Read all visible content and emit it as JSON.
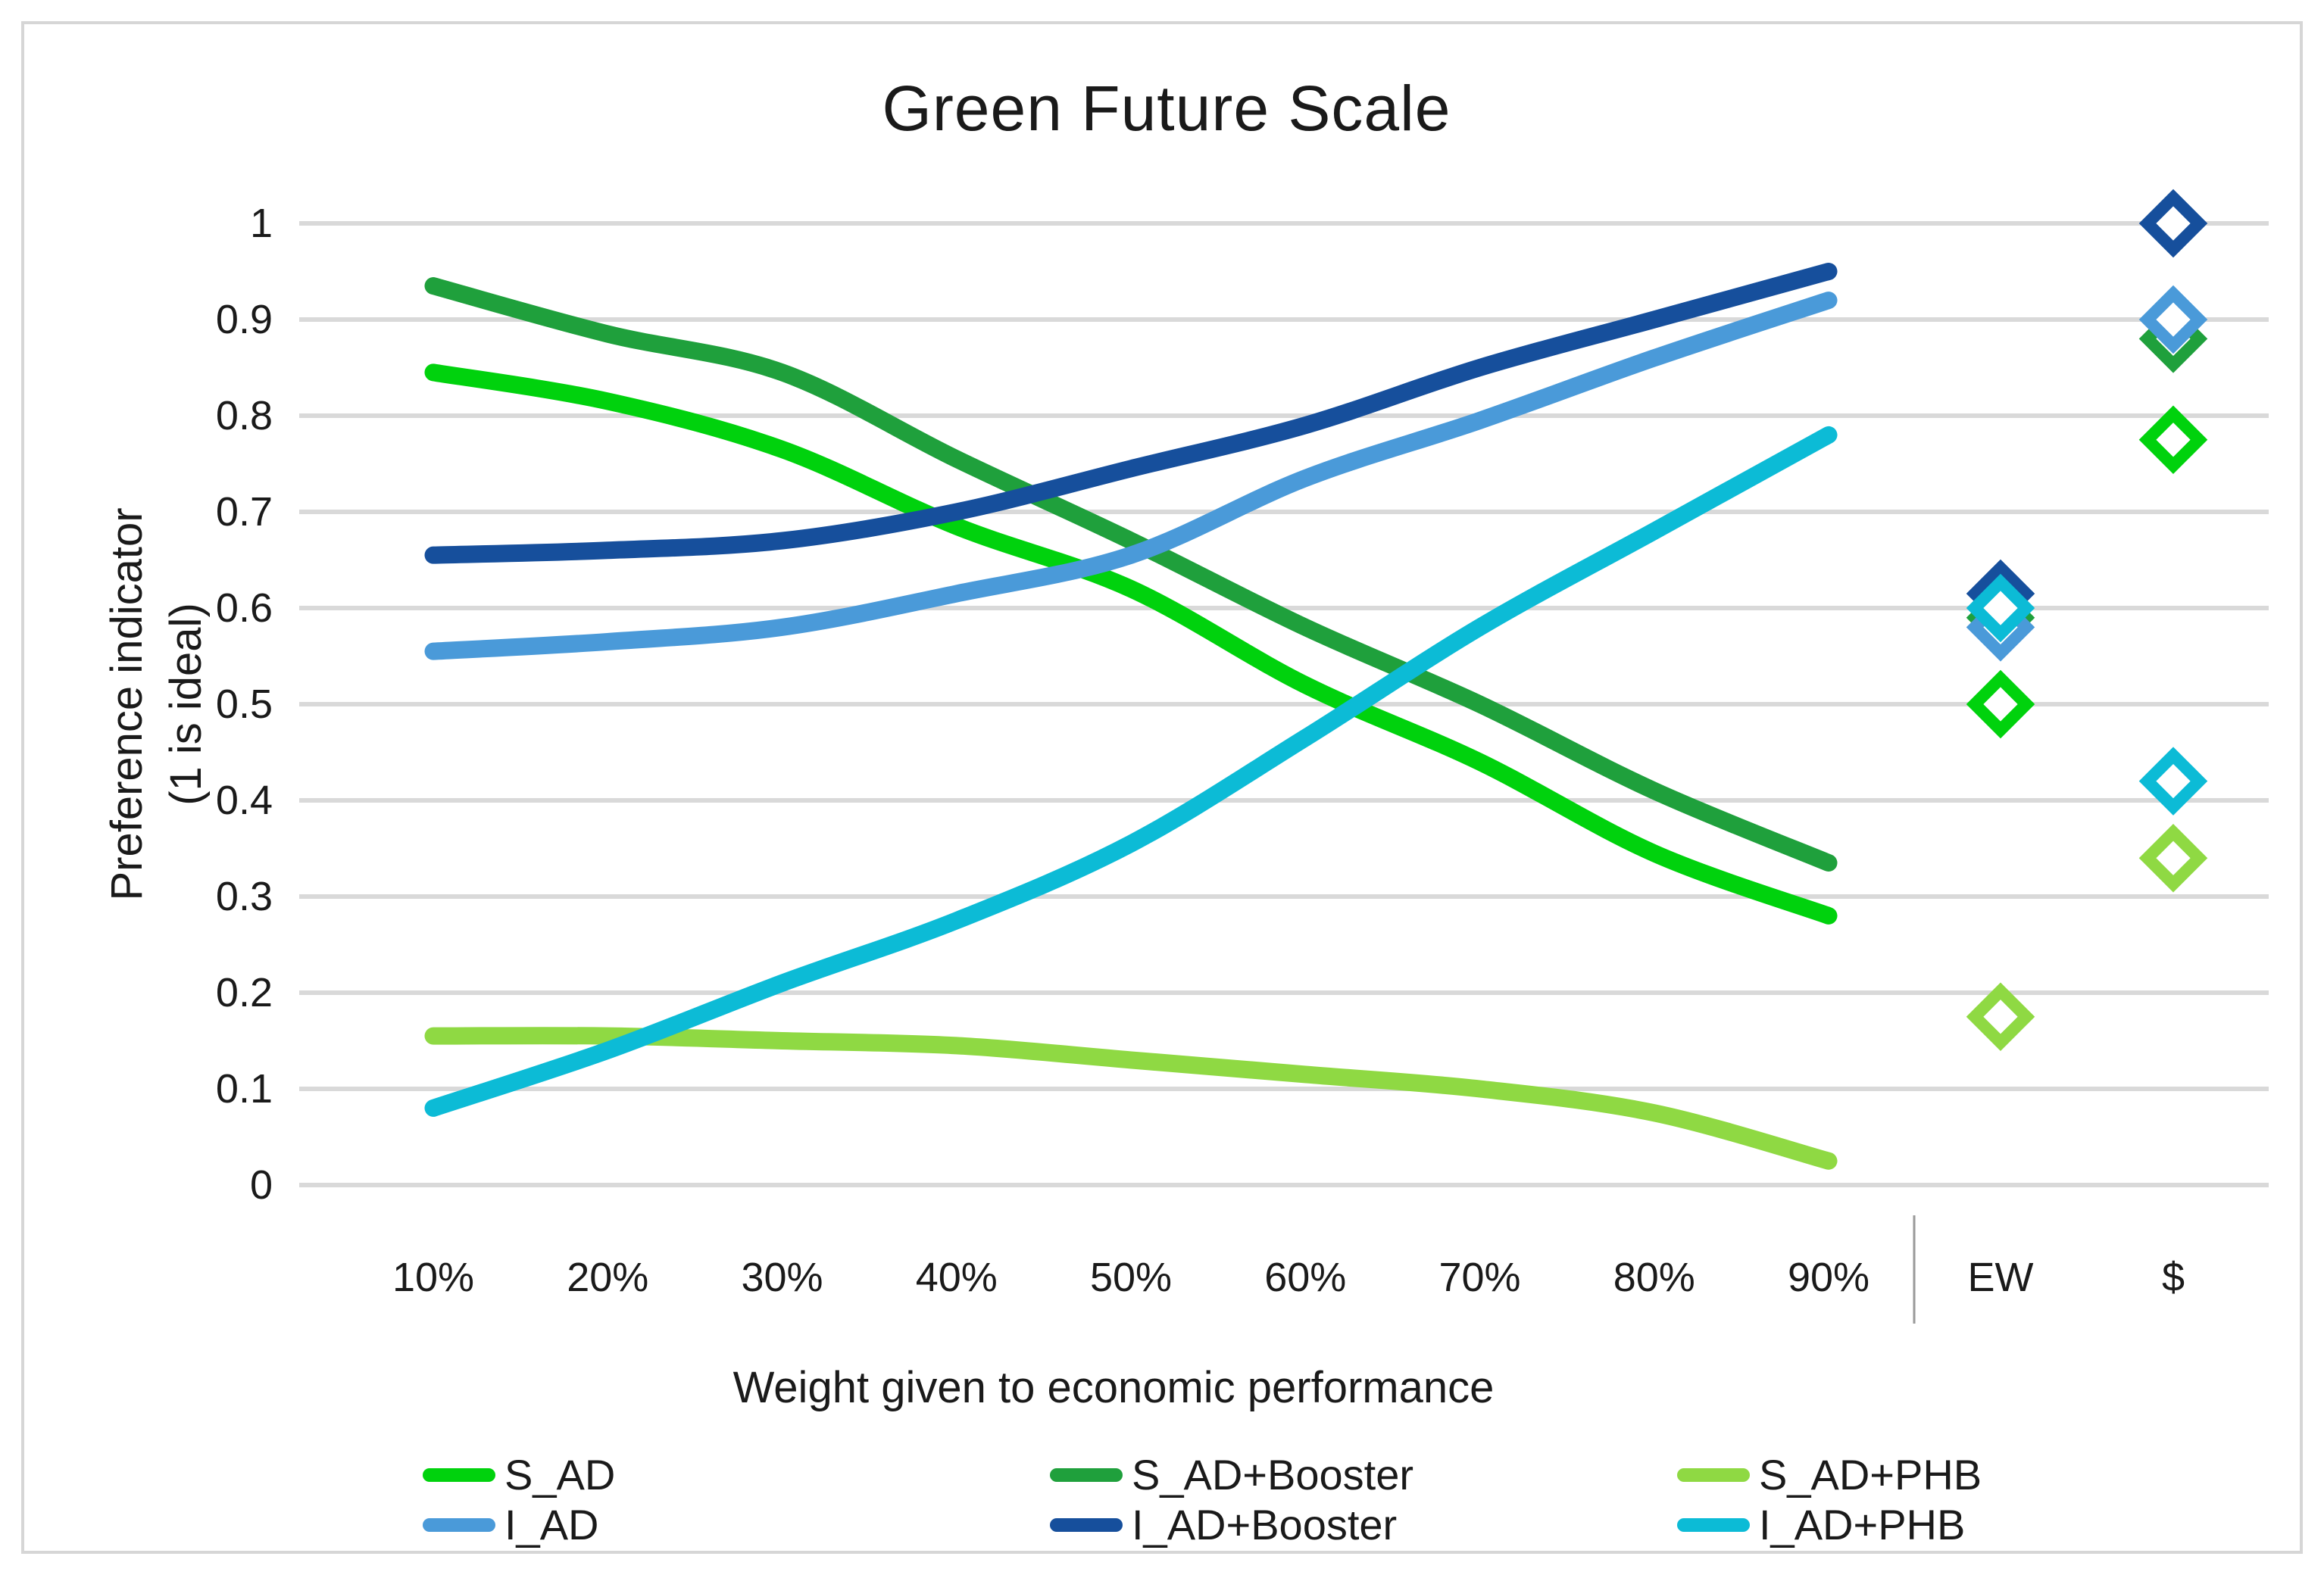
{
  "title": "Green Future Scale",
  "y_axis": {
    "title_line1": "Preference indicator",
    "title_line2": "(1 is ideal)",
    "tick_labels": [
      "1",
      "0.9",
      "0.8",
      "0.7",
      "0.6",
      "0.5",
      "0.4",
      "0.3",
      "0.2",
      "0.1",
      "0"
    ],
    "min": 0,
    "max": 1
  },
  "x_axis": {
    "title": "Weight given to economic performance",
    "categories": [
      "10%",
      "20%",
      "30%",
      "40%",
      "50%",
      "60%",
      "70%",
      "80%",
      "90%"
    ],
    "marker_categories": [
      "EW",
      "$"
    ]
  },
  "colors": {
    "gridline": "#d9d9d9",
    "frame_border": "#d6d6d6",
    "separator": "#9a9a9a",
    "text": "#1a1a1a",
    "marker_fill": "#ffffff"
  },
  "chart_data": {
    "type": "line",
    "title": "Green Future Scale",
    "xlabel": "Weight given to economic performance",
    "ylabel": "Preference indicator (1 is ideal)",
    "ylim": [
      0,
      1
    ],
    "y_tick_step": 0.1,
    "grid": true,
    "legend_position": "bottom",
    "categories": [
      "10%",
      "20%",
      "30%",
      "40%",
      "50%",
      "60%",
      "70%",
      "80%",
      "90%"
    ],
    "marker_categories": [
      "EW",
      "$"
    ],
    "series": [
      {
        "name": "S_AD",
        "color": "#00d20d",
        "values": [
          0.845,
          0.815,
          0.765,
          0.685,
          0.62,
          0.52,
          0.44,
          0.345,
          0.28
        ],
        "markers": {
          "EW": 0.5,
          "$": 0.775
        }
      },
      {
        "name": "S_AD+Booster",
        "color": "#1fa03c",
        "values": [
          0.935,
          0.885,
          0.845,
          0.755,
          0.67,
          0.58,
          0.5,
          0.41,
          0.335
        ],
        "markers": {
          "EW": 0.59,
          "$": 0.88
        }
      },
      {
        "name": "S_AD+PHB",
        "color": "#8fd943",
        "values": [
          0.155,
          0.155,
          0.15,
          0.145,
          0.13,
          0.115,
          0.1,
          0.075,
          0.025
        ],
        "markers": {
          "EW": 0.175,
          "$": 0.34
        }
      },
      {
        "name": "I_AD",
        "color": "#4a9ad9",
        "values": [
          0.555,
          0.565,
          0.58,
          0.615,
          0.655,
          0.735,
          0.795,
          0.86,
          0.92
        ],
        "markers": {
          "EW": 0.58,
          "$": 0.9
        }
      },
      {
        "name": "I_AD+Booster",
        "color": "#164f9c",
        "values": [
          0.655,
          0.66,
          0.67,
          0.7,
          0.745,
          0.79,
          0.85,
          0.9,
          0.95
        ],
        "markers": {
          "EW": 0.615,
          "$": 1.0
        }
      },
      {
        "name": "I_AD+PHB",
        "color": "#0cbbd6",
        "values": [
          0.08,
          0.14,
          0.21,
          0.275,
          0.355,
          0.465,
          0.58,
          0.68,
          0.78
        ],
        "markers": {
          "EW": 0.6,
          "$": 0.42
        }
      }
    ]
  }
}
